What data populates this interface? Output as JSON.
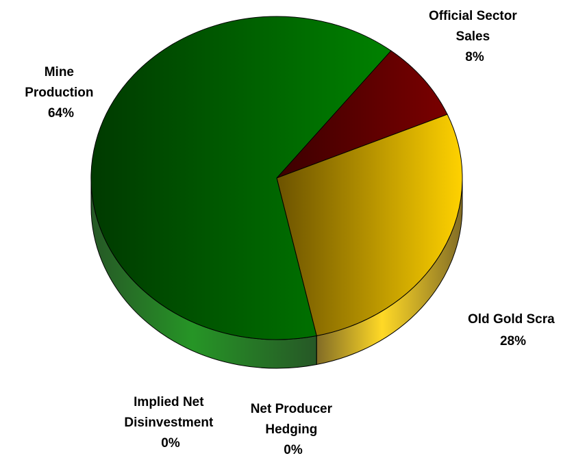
{
  "chart_data": {
    "type": "pie",
    "title": "",
    "legend": "none",
    "series": [
      {
        "name": "",
        "slices": [
          {
            "label": [
              "Official Sector",
              "Sales"
            ],
            "value": 8,
            "display": "8%",
            "colors": [
              "#7a0000",
              "#3c0000"
            ]
          },
          {
            "label": [
              "Old Gold Scra"
            ],
            "value": 28,
            "display": "28%",
            "colors": [
              "#ffd200",
              "#6b5200"
            ]
          },
          {
            "label": [
              "Net Producer",
              "Hedging"
            ],
            "value": 0,
            "display": "0%",
            "colors": [
              "#888888",
              "#444444"
            ]
          },
          {
            "label": [
              "Implied Net",
              "Disinvestment"
            ],
            "value": 0,
            "display": "0%",
            "colors": [
              "#888888",
              "#444444"
            ]
          },
          {
            "label": [
              "Mine",
              "Production"
            ],
            "value": 64,
            "display": "64%",
            "colors": [
              "#008200",
              "#003a00"
            ]
          }
        ]
      }
    ]
  }
}
